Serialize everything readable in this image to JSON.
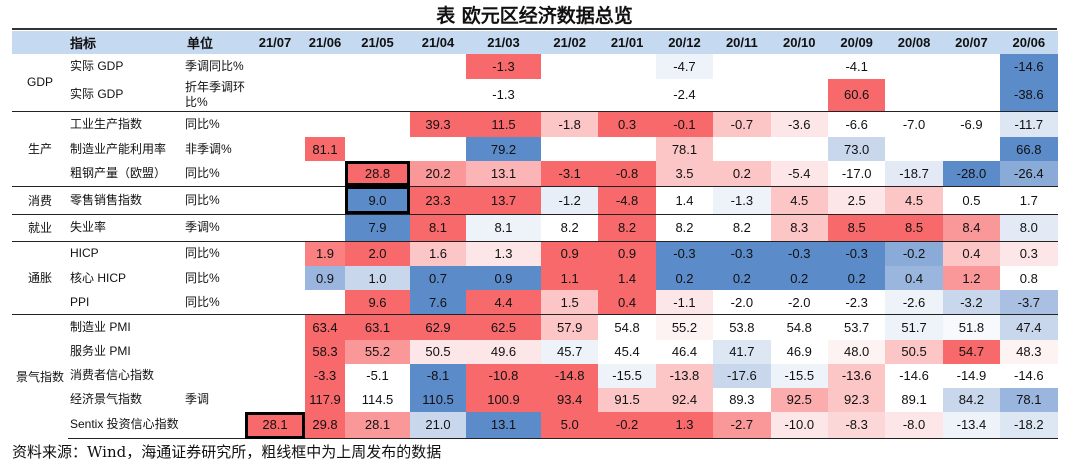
{
  "title": "表 欧元区经济数据总览",
  "headers": {
    "indicator": "指标",
    "unit": "单位"
  },
  "chart_data": {
    "type": "table",
    "title": "表 欧元区经济数据总览",
    "columns": [
      "21/07",
      "21/06",
      "21/05",
      "21/04",
      "21/03",
      "21/02",
      "21/01",
      "20/12",
      "20/11",
      "20/10",
      "20/09",
      "20/08",
      "20/07",
      "20/06"
    ],
    "color_scale": {
      "high": "#f8696b",
      "mid": "#ffffff",
      "low": "#5b8bc9"
    },
    "groups": [
      {
        "label": "GDP",
        "rows": [
          {
            "name": "实际 GDP",
            "unit": "季调同比%",
            "values": [
              "",
              "",
              "",
              "",
              "-1.3",
              "",
              "",
              "-4.7",
              "",
              "",
              "-4.1",
              "",
              "",
              "-14.6"
            ],
            "colors": [
              "",
              "",
              "",
              "",
              "#f8696b",
              "",
              "",
              "#eef2f9",
              "",
              "",
              "#ffffff",
              "",
              "",
              "#5b8bc9"
            ]
          },
          {
            "name": "实际 GDP",
            "unit": "折年季调环比%",
            "values": [
              "",
              "",
              "",
              "",
              "-1.3",
              "",
              "",
              "-2.4",
              "",
              "",
              "60.6",
              "",
              "",
              "-38.6"
            ],
            "colors": [
              "",
              "",
              "",
              "",
              "#ffffff",
              "",
              "",
              "#ffffff",
              "",
              "",
              "#f8696b",
              "",
              "",
              "#5b8bc9"
            ]
          }
        ]
      },
      {
        "label": "生产",
        "rows": [
          {
            "name": "工业生产指数",
            "unit": "同比%",
            "values": [
              "",
              "",
              "",
              "39.3",
              "11.5",
              "-1.8",
              "0.3",
              "-0.1",
              "-0.7",
              "-3.6",
              "-6.6",
              "-7.0",
              "-6.9",
              "-11.7"
            ],
            "colors": [
              "",
              "",
              "",
              "#f8696b",
              "#f8696b",
              "#fcc5c6",
              "#f8696b",
              "#f8696b",
              "#fcc5c6",
              "#fde6e7",
              "#ffffff",
              "#ffffff",
              "#ffffff",
              "#dde6f3"
            ]
          },
          {
            "name": "制造业产能利用率",
            "unit": "非季调%",
            "values": [
              "",
              "81.1",
              "",
              "",
              "79.2",
              "",
              "",
              "78.1",
              "",
              "",
              "73.0",
              "",
              "",
              "66.8"
            ],
            "colors": [
              "",
              "#f8696b",
              "",
              "",
              "#5b8bc9",
              "",
              "",
              "#fcc5c6",
              "",
              "",
              "#c9d7ed",
              "",
              "",
              "#5b8bc9"
            ]
          },
          {
            "name": "粗钢产量（欧盟）",
            "unit": "同比%",
            "values": [
              "",
              "",
              "28.8",
              "20.2",
              "13.1",
              "-3.1",
              "-0.8",
              "3.5",
              "0.2",
              "-5.4",
              "-17.0",
              "-18.7",
              "-28.0",
              "-26.4"
            ],
            "colors": [
              "",
              "",
              "#f8696b",
              "#fa9799",
              "#fcb5b6",
              "#f8696b",
              "#f8696b",
              "#fcc5c6",
              "#fcc5c6",
              "#fde6e7",
              "#ffffff",
              "#e3eaf5",
              "#5b8bc9",
              "#8aaad8"
            ],
            "boxed": [
              2
            ]
          }
        ]
      },
      {
        "label": "消费",
        "rows": [
          {
            "name": "零售销售指数",
            "unit": "同比%",
            "values": [
              "",
              "",
              "9.0",
              "23.3",
              "13.7",
              "-1.2",
              "-4.8",
              "1.4",
              "-1.3",
              "4.5",
              "2.5",
              "4.5",
              "0.5",
              "1.7"
            ],
            "colors": [
              "",
              "",
              "#5b8bc9",
              "#f8696b",
              "#f8696b",
              "#e8eef7",
              "#f8696b",
              "#ffffff",
              "#eef2f9",
              "#fcc5c6",
              "#fde6e7",
              "#fcc5c6",
              "#ffffff",
              "#ffffff"
            ],
            "boxed": [
              2
            ]
          }
        ]
      },
      {
        "label": "就业",
        "rows": [
          {
            "name": "失业率",
            "unit": "季调%",
            "values": [
              "",
              "",
              "7.9",
              "8.1",
              "8.1",
              "8.2",
              "8.2",
              "8.2",
              "8.2",
              "8.3",
              "8.5",
              "8.5",
              "8.4",
              "8.0"
            ],
            "colors": [
              "",
              "",
              "#5b8bc9",
              "#f8696b",
              "#eef2f9",
              "#ffffff",
              "#f8696b",
              "#ffffff",
              "#ffffff",
              "#fcc5c6",
              "#f8696b",
              "#f8696b",
              "#fa9799",
              "#e3eaf5"
            ]
          }
        ]
      },
      {
        "label": "通胀",
        "rows": [
          {
            "name": "HICP",
            "unit": "同比%",
            "values": [
              "",
              "1.9",
              "2.0",
              "1.6",
              "1.3",
              "0.9",
              "0.9",
              "-0.3",
              "-0.3",
              "-0.3",
              "-0.3",
              "-0.2",
              "0.4",
              "0.3"
            ],
            "colors": [
              "",
              "#fa8082",
              "#f8696b",
              "#fcc5c6",
              "#fde6e7",
              "#f8696b",
              "#f8696b",
              "#5b8bc9",
              "#5b8bc9",
              "#5b8bc9",
              "#5b8bc9",
              "#8aaad8",
              "#fcc5c6",
              "#fde6e7"
            ]
          },
          {
            "name": "核心 HICP",
            "unit": "同比%",
            "values": [
              "",
              "0.9",
              "1.0",
              "0.7",
              "0.9",
              "1.1",
              "1.4",
              "0.2",
              "0.2",
              "0.2",
              "0.2",
              "0.4",
              "1.2",
              "0.8"
            ],
            "colors": [
              "",
              "#9bb6de",
              "#c9d7ed",
              "#5b8bc9",
              "#5b8bc9",
              "#f8696b",
              "#f8696b",
              "#5b8bc9",
              "#5b8bc9",
              "#5b8bc9",
              "#5b8bc9",
              "#9bb6de",
              "#fa9799",
              "#ffffff"
            ]
          },
          {
            "name": "PPI",
            "unit": "同比%",
            "values": [
              "",
              "",
              "9.6",
              "7.6",
              "4.4",
              "1.5",
              "0.4",
              "-1.1",
              "-2.0",
              "-2.0",
              "-2.3",
              "-2.6",
              "-3.2",
              "-3.7"
            ],
            "colors": [
              "",
              "",
              "#f8696b",
              "#5b8bc9",
              "#f8696b",
              "#fcc5c6",
              "#f8696b",
              "#fde6e7",
              "#ffffff",
              "#ffffff",
              "#ffffff",
              "#eef2f9",
              "#c9d7ed",
              "#a9c0e2"
            ]
          }
        ]
      },
      {
        "label": "景气指数",
        "rows": [
          {
            "name": "制造业 PMI",
            "unit": "",
            "values": [
              "",
              "63.4",
              "63.1",
              "62.9",
              "62.5",
              "57.9",
              "54.8",
              "55.2",
              "53.8",
              "54.8",
              "53.7",
              "51.7",
              "51.8",
              "47.4"
            ],
            "colors": [
              "",
              "#f8696b",
              "#f8696b",
              "#f8696b",
              "#f8696b",
              "#fcc5c6",
              "#ffffff",
              "#fef3f3",
              "#ffffff",
              "#ffffff",
              "#ffffff",
              "#eef2f9",
              "#f7f9fc",
              "#c9d7ed"
            ]
          },
          {
            "name": "服务业 PMI",
            "unit": "",
            "values": [
              "",
              "58.3",
              "55.2",
              "50.5",
              "49.6",
              "45.7",
              "45.4",
              "46.4",
              "41.7",
              "46.9",
              "48.0",
              "50.5",
              "54.7",
              "48.3"
            ],
            "colors": [
              "",
              "#f8696b",
              "#fa9799",
              "#fde6e7",
              "#fde6e7",
              "#eef2f9",
              "#ffffff",
              "#ffffff",
              "#dde6f3",
              "#ffffff",
              "#fef3f3",
              "#fcc5c6",
              "#f8696b",
              "#fef3f3"
            ]
          },
          {
            "name": "消费者信心指数",
            "unit": "",
            "values": [
              "",
              "-3.3",
              "-5.1",
              "-8.1",
              "-10.8",
              "-14.8",
              "-15.5",
              "-13.8",
              "-17.6",
              "-15.5",
              "-13.6",
              "-14.6",
              "-14.9",
              "-14.6"
            ],
            "colors": [
              "",
              "#f8696b",
              "#ffffff",
              "#5b8bc9",
              "#f8696b",
              "#f8696b",
              "#eef2f9",
              "#fcc5c6",
              "#c9d7ed",
              "#eef2f9",
              "#fcc5c6",
              "#ffffff",
              "#ffffff",
              "#ffffff"
            ]
          },
          {
            "name": "经济景气指数",
            "unit": "季调",
            "values": [
              "",
              "117.9",
              "114.5",
              "110.5",
              "100.9",
              "93.4",
              "91.5",
              "92.4",
              "89.3",
              "92.5",
              "92.3",
              "89.1",
              "84.2",
              "78.1"
            ],
            "colors": [
              "",
              "#f8696b",
              "#ffffff",
              "#5b8bc9",
              "#f8696b",
              "#f8696b",
              "#fcc5c6",
              "#fcc5c6",
              "#ffffff",
              "#fbadae",
              "#fcc5c6",
              "#ffffff",
              "#c9d7ed",
              "#9bb6de"
            ]
          },
          {
            "name": "Sentix 投资信心指数",
            "unit": "",
            "values": [
              "28.1",
              "29.8",
              "28.1",
              "21.0",
              "13.1",
              "5.0",
              "-0.2",
              "1.3",
              "-2.7",
              "-10.0",
              "-8.3",
              "-8.0",
              "-13.4",
              "-18.2"
            ],
            "colors": [
              "#f8696b",
              "#f8696b",
              "#fa9799",
              "#c9d7ed",
              "#5b8bc9",
              "#f8696b",
              "#f8696b",
              "#f8696b",
              "#fa9799",
              "#fde6e7",
              "#fcd7d8",
              "#fde6e7",
              "#eef2f9",
              "#dde6f3"
            ],
            "boxed": [
              0
            ]
          }
        ]
      }
    ]
  },
  "footer": "资料来源：Wind，海通证券研究所，粗线框中为上周发布的数据"
}
